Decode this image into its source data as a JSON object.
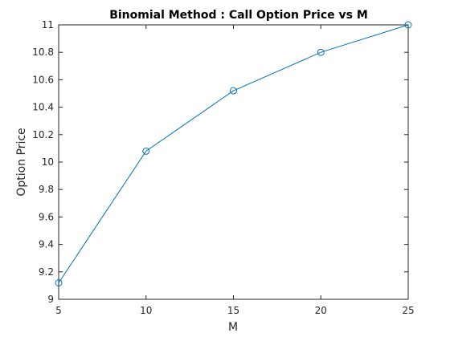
{
  "chart_data": {
    "type": "line",
    "title": "Binomial Method : Call Option Price vs M",
    "xlabel": "M",
    "ylabel": "Option Price",
    "x": [
      5,
      10,
      15,
      20,
      25
    ],
    "series": [
      {
        "values": [
          9.12,
          10.08,
          10.52,
          10.8,
          11.0
        ],
        "color": "#0072bd",
        "marker": "circle"
      }
    ],
    "xlim": [
      5,
      25
    ],
    "ylim": [
      9,
      11
    ],
    "xticks": [
      5,
      10,
      15,
      20,
      25
    ],
    "xtick_labels": [
      "5",
      "10",
      "15",
      "20",
      "25"
    ],
    "yticks": [
      9,
      9.2,
      9.4,
      9.6,
      9.8,
      10,
      10.2,
      10.4,
      10.6,
      10.8,
      11
    ],
    "ytick_labels": [
      "9",
      "9.2",
      "9.4",
      "9.6",
      "9.8",
      "10",
      "10.2",
      "10.4",
      "10.6",
      "10.8",
      "11"
    ],
    "grid": false,
    "legend": "none"
  }
}
